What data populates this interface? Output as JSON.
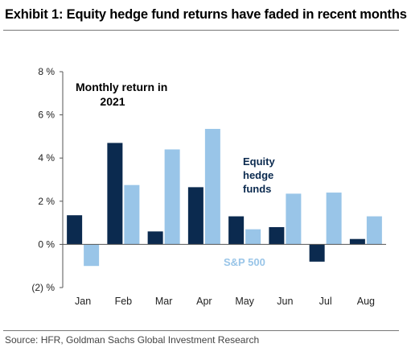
{
  "header": {
    "title": "Exhibit 1: Equity hedge fund returns have faded in recent months"
  },
  "footer": {
    "source": "Source: HFR, Goldman Sachs Global Investment Research"
  },
  "chart_data": {
    "type": "bar",
    "title": "",
    "xlabel": "",
    "ylabel": "",
    "categories": [
      "Jan",
      "Feb",
      "Mar",
      "Apr",
      "May",
      "Jun",
      "Jul",
      "Aug"
    ],
    "series": [
      {
        "name": "Equity hedge funds",
        "color": "#0b2a4f",
        "values": [
          1.35,
          4.7,
          0.6,
          2.65,
          1.3,
          0.8,
          -0.8,
          0.25
        ]
      },
      {
        "name": "S&P 500",
        "color": "#99c5e8",
        "values": [
          -1.0,
          2.75,
          4.4,
          5.35,
          0.7,
          2.35,
          2.4,
          1.3
        ]
      }
    ],
    "ylim": [
      -2,
      8
    ],
    "yticks": [
      -2,
      0,
      2,
      4,
      6,
      8
    ],
    "ytick_labels": [
      "(2) %",
      "0 %",
      "2 %",
      "4 %",
      "6 %",
      "8 %"
    ],
    "grid": false,
    "annotations": [
      {
        "text": "Monthly return in",
        "weight": "bold"
      },
      {
        "text": "2021",
        "weight": "bold"
      },
      {
        "text": "Equity",
        "series": 0
      },
      {
        "text": "hedge",
        "series": 0
      },
      {
        "text": "funds",
        "series": 0
      },
      {
        "text": "S&P 500",
        "series": 1
      }
    ]
  }
}
